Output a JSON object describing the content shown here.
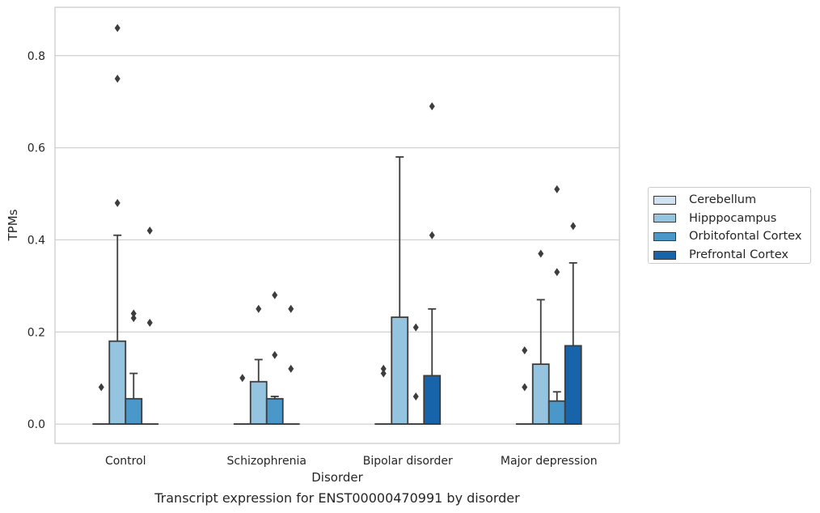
{
  "caption": "Transcript expression for ENST00000470991 by disorder",
  "chart_data": {
    "type": "box",
    "xlabel": "Disorder",
    "ylabel": "TPMs",
    "ylim": [
      -0.042,
      0.905
    ],
    "yticks": [
      0.0,
      0.2,
      0.4,
      0.6,
      0.8
    ],
    "ytick_labels": [
      "0.0",
      "0.2",
      "0.4",
      "0.6",
      "0.8"
    ],
    "grid": true,
    "legend_position": "right",
    "categories": [
      "Control",
      "Schizophrenia",
      "Bipolar disorder",
      "Major depression"
    ],
    "series": [
      {
        "name": "Cerebellum",
        "color": "#d0e1f2",
        "boxes": [
          {
            "q1": 0,
            "median": 0,
            "q3": 0,
            "whisker_low": 0,
            "whisker_high": 0,
            "outliers": [
              0.08
            ]
          },
          {
            "q1": 0,
            "median": 0,
            "q3": 0,
            "whisker_low": 0,
            "whisker_high": 0,
            "outliers": [
              0.1
            ]
          },
          {
            "q1": 0,
            "median": 0,
            "q3": 0,
            "whisker_low": 0,
            "whisker_high": 0,
            "outliers": [
              0.12,
              0.11
            ]
          },
          {
            "q1": 0,
            "median": 0,
            "q3": 0,
            "whisker_low": 0,
            "whisker_high": 0,
            "outliers": [
              0.16,
              0.08
            ]
          }
        ]
      },
      {
        "name": "Hipppocampus",
        "color": "#94c4df",
        "boxes": [
          {
            "q1": 0,
            "median": 0,
            "q3": 0.18,
            "whisker_low": 0,
            "whisker_high": 0.41,
            "outliers": [
              0.86,
              0.75,
              0.48
            ]
          },
          {
            "q1": 0,
            "median": 0,
            "q3": 0.092,
            "whisker_low": 0,
            "whisker_high": 0.14,
            "outliers": [
              0.25
            ]
          },
          {
            "q1": 0,
            "median": 0,
            "q3": 0.232,
            "whisker_low": 0,
            "whisker_high": 0.58,
            "outliers": []
          },
          {
            "q1": 0,
            "median": 0,
            "q3": 0.13,
            "whisker_low": 0,
            "whisker_high": 0.27,
            "outliers": [
              0.37
            ]
          }
        ]
      },
      {
        "name": "Orbitofontal Cortex",
        "color": "#4a98c9",
        "boxes": [
          {
            "q1": 0,
            "median": 0,
            "q3": 0.055,
            "whisker_low": 0,
            "whisker_high": 0.11,
            "outliers": [
              0.24,
              0.23
            ]
          },
          {
            "q1": 0,
            "median": 0,
            "q3": 0.055,
            "whisker_low": 0,
            "whisker_high": 0.06,
            "outliers": [
              0.28,
              0.15
            ]
          },
          {
            "q1": 0,
            "median": 0,
            "q3": 0,
            "whisker_low": 0,
            "whisker_high": 0,
            "outliers": [
              0.21,
              0.06
            ]
          },
          {
            "q1": 0,
            "median": 0,
            "q3": 0.05,
            "whisker_low": 0,
            "whisker_high": 0.07,
            "outliers": [
              0.51,
              0.33
            ]
          }
        ]
      },
      {
        "name": "Prefrontal Cortex",
        "color": "#1764ab",
        "boxes": [
          {
            "q1": 0,
            "median": 0,
            "q3": 0,
            "whisker_low": 0,
            "whisker_high": 0,
            "outliers": [
              0.42,
              0.22
            ]
          },
          {
            "q1": 0,
            "median": 0,
            "q3": 0,
            "whisker_low": 0,
            "whisker_high": 0,
            "outliers": [
              0.25,
              0.12
            ]
          },
          {
            "q1": 0,
            "median": 0,
            "q3": 0.105,
            "whisker_low": 0,
            "whisker_high": 0.25,
            "outliers": [
              0.69,
              0.41
            ]
          },
          {
            "q1": 0,
            "median": 0,
            "q3": 0.17,
            "whisker_low": 0,
            "whisker_high": 0.35,
            "outliers": [
              0.43
            ]
          }
        ]
      }
    ]
  }
}
